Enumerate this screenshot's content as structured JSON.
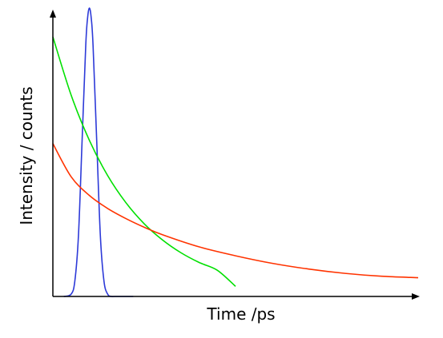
{
  "chart_data": {
    "type": "line",
    "title": "",
    "xlabel": "Time /ps",
    "ylabel": "Intensity / counts",
    "xlim": [
      0,
      10
    ],
    "ylim": [
      0,
      1
    ],
    "grid": false,
    "legend": "none",
    "tick_labels": false,
    "series": [
      {
        "color": "#2d3ad8",
        "x": [
          0.3,
          0.5,
          0.6,
          0.7,
          0.8,
          0.9,
          0.95,
          1.0,
          1.05,
          1.1,
          1.2,
          1.3,
          1.4,
          1.5,
          1.6,
          1.7,
          1.9,
          2.2
        ],
        "y": [
          0.0,
          0.008,
          0.052,
          0.21,
          0.54,
          0.87,
          0.965,
          1.0,
          0.965,
          0.87,
          0.54,
          0.21,
          0.052,
          0.008,
          0.0,
          0.0,
          0.0,
          0.0
        ]
      },
      {
        "color": "#00e000",
        "x": [
          0.0,
          0.5,
          1.0,
          1.5,
          2.0,
          2.5,
          3.0,
          3.5,
          4.0,
          4.5,
          5.0
        ],
        "y": [
          0.9,
          0.698,
          0.541,
          0.419,
          0.325,
          0.252,
          0.196,
          0.152,
          0.118,
          0.091,
          0.035
        ]
      },
      {
        "color": "#ff3300",
        "x": [
          0.0,
          0.5,
          1.0,
          1.5,
          2.0,
          2.5,
          3.0,
          4.0,
          5.0,
          6.0,
          7.0,
          8.0,
          9.0,
          10.0
        ],
        "y": [
          0.53,
          0.415,
          0.35,
          0.305,
          0.27,
          0.24,
          0.214,
          0.172,
          0.141,
          0.115,
          0.095,
          0.08,
          0.07,
          0.065
        ]
      }
    ]
  }
}
